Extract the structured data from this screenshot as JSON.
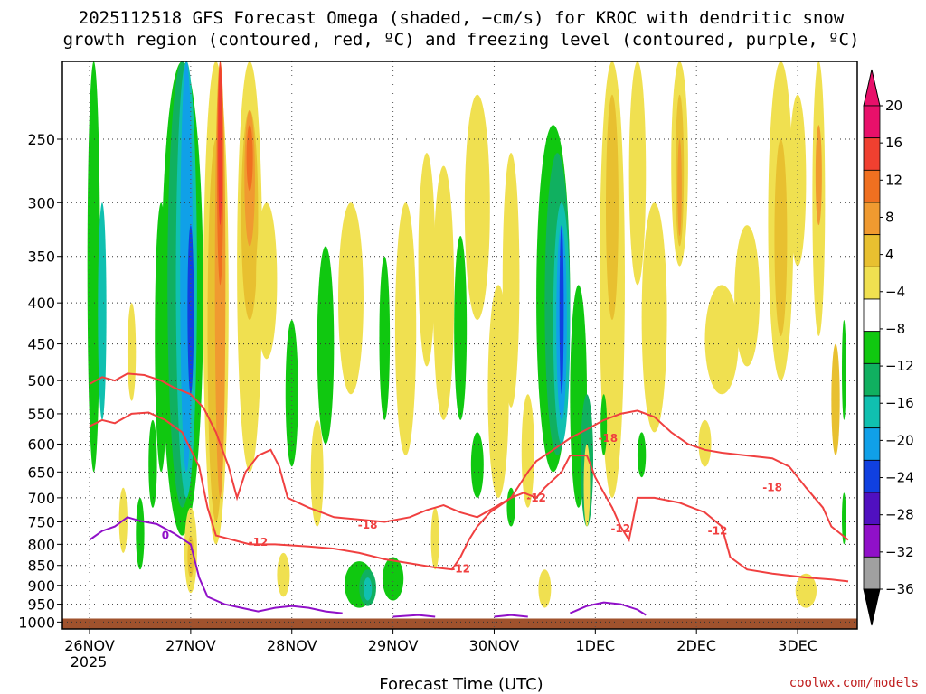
{
  "chart_data": {
    "type": "heatmap",
    "title_line1": "2025112518 GFS Forecast Omega (shaded, −cm/s) for KROC with dendritic snow",
    "title_line2": "growth region (contoured, red, ºC) and freezing level (contoured, purple, ºC)",
    "xlabel": "Forecast Time (UTC)",
    "x_ticks": [
      "26NOV",
      "27NOV",
      "28NOV",
      "29NOV",
      "30NOV",
      "1DEC",
      "2DEC",
      "3DEC"
    ],
    "x_year_label": "2025",
    "x_range_hours": [
      0,
      180
    ],
    "y_ticks": [
      250,
      300,
      350,
      400,
      450,
      500,
      550,
      600,
      650,
      700,
      750,
      800,
      850,
      900,
      950,
      1000
    ],
    "y_range_hpa": [
      200,
      1020
    ],
    "y_scale": "log-pressure",
    "grid": true,
    "colorbar_labels": [
      "20",
      "16",
      "12",
      "8",
      "4",
      "−4",
      "−8",
      "−12",
      "−16",
      "−20",
      "−24",
      "−28",
      "−32",
      "−36"
    ],
    "colorbar_colors": [
      "#e8106a",
      "#f04030",
      "#f07020",
      "#f09a30",
      "#e8c030",
      "#f0e050",
      "#ffffff",
      "#10c810",
      "#10b060",
      "#10c0b0",
      "#10a0e8",
      "#1040e0",
      "#5010c0",
      "#9010c8",
      "#a0a0a0"
    ],
    "shading_colors": {
      "pos4": "#f0e050",
      "pos8": "#e8c030",
      "pos12": "#f09a30",
      "pos16": "#f07020",
      "pos20": "#f04030",
      "neg4": "#10c810",
      "neg8": "#10b060",
      "neg12": "#10c0b0",
      "neg16": "#10a0e8",
      "neg20": "#1040e0"
    },
    "contours": {
      "dendritic_color": "#f04040",
      "freezing_color": "#9010c8",
      "labels": [
        "-18",
        "-12",
        "-18",
        "-12",
        "-12",
        "-12",
        "-18",
        "-12",
        "0"
      ]
    },
    "ground_color": "#a0522d",
    "credit": "coolwx.com/models"
  }
}
